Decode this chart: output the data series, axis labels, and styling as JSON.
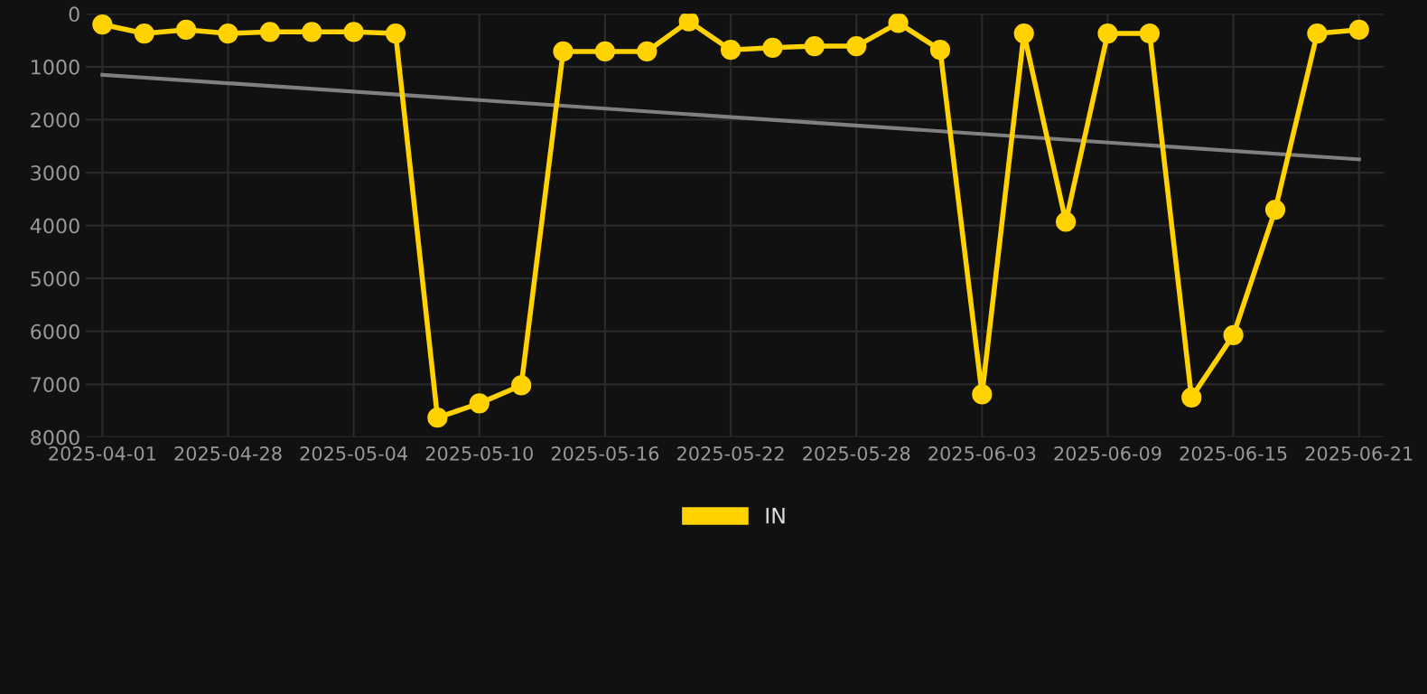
{
  "chart_data": {
    "type": "line",
    "categories": [
      "2025-04-01",
      null,
      null,
      "2025-04-28",
      null,
      null,
      "2025-05-04",
      null,
      null,
      "2025-05-10",
      null,
      null,
      "2025-05-16",
      null,
      null,
      "2025-05-22",
      null,
      null,
      "2025-05-28",
      null,
      null,
      "2025-06-03",
      null,
      null,
      "2025-06-09",
      null,
      null,
      "2025-06-15",
      null,
      null,
      "2025-06-21"
    ],
    "series": [
      {
        "name": "IN",
        "color": "#ffd200",
        "marker": "circle",
        "values": [
          200,
          370,
          300,
          370,
          340,
          340,
          340,
          370,
          7630,
          7360,
          7020,
          710,
          710,
          710,
          140,
          680,
          640,
          610,
          610,
          170,
          680,
          7190,
          370,
          3930,
          370,
          370,
          7250,
          6070,
          3700,
          370,
          300
        ]
      },
      {
        "color": "#808080",
        "marker": "none",
        "values": [
          1150,
          null,
          null,
          null,
          null,
          null,
          null,
          null,
          null,
          null,
          null,
          null,
          null,
          null,
          null,
          null,
          null,
          null,
          null,
          null,
          null,
          null,
          null,
          null,
          null,
          null,
          null,
          null,
          null,
          null,
          2750
        ]
      }
    ],
    "ylim": [
      8000,
      0
    ],
    "yticks": [
      0,
      1000,
      2000,
      3000,
      4000,
      5000,
      6000,
      7000,
      8000
    ],
    "grid": true,
    "legend": "bottom"
  }
}
